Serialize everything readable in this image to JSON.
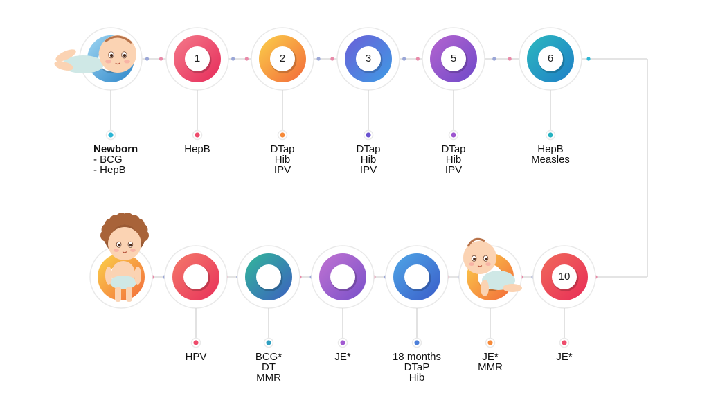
{
  "colors": {
    "line": "#d3d3d3",
    "ring": "#e9e9e9"
  },
  "top_row": [
    {
      "id": "newborn",
      "number": "",
      "gradient": [
        "#9fd6f2",
        "#2e86c9"
      ],
      "dot": "#2bb5d4",
      "baby": "lying",
      "label": [
        "Newborn",
        "- BCG",
        "- HepB"
      ]
    },
    {
      "id": "m1",
      "number": "1",
      "gradient": [
        "#f47a8a",
        "#e62b5a"
      ],
      "dot": "#ee4b6b",
      "label": [
        "HepB"
      ]
    },
    {
      "id": "m2",
      "number": "2",
      "gradient": [
        "#fbd04a",
        "#f2683a"
      ],
      "dot": "#f68a3a",
      "label": [
        "DTap",
        "Hib",
        "IPV"
      ]
    },
    {
      "id": "m3",
      "number": "3",
      "gradient": [
        "#6a5fd8",
        "#3e9be4"
      ],
      "dot": "#6a53d0",
      "label": [
        "DTap",
        "Hib",
        "IPV"
      ]
    },
    {
      "id": "m5",
      "number": "5",
      "gradient": [
        "#b564cf",
        "#6e49c9"
      ],
      "dot": "#9d55cf",
      "label": [
        "DTap",
        "Hib",
        "IPV"
      ]
    },
    {
      "id": "m6",
      "number": "6",
      "gradient": [
        "#2cb8bf",
        "#1f7fc7"
      ],
      "dot": "#26b2c0",
      "label": [
        "HepB",
        "Measles"
      ]
    }
  ],
  "bottom_row": [
    {
      "id": "m10",
      "number": "10",
      "gradient": [
        "#f06a5a",
        "#e82c58"
      ],
      "dot": "#ee4b6b",
      "label": [
        "JE*"
      ]
    },
    {
      "id": "m12",
      "number": "",
      "gradient": [
        "#fbd04a",
        "#f2683a"
      ],
      "dot": "#f68a3a",
      "baby": "crawling",
      "label": [
        "JE*",
        "MMR"
      ]
    },
    {
      "id": "m18",
      "number": "",
      "gradient": [
        "#4fa6e6",
        "#3a5cc9"
      ],
      "dot": "#4c7fd9",
      "label": [
        "18 months",
        "DTaP",
        "Hib"
      ]
    },
    {
      "id": "je",
      "number": "",
      "gradient": [
        "#c173d2",
        "#7850c9"
      ],
      "dot": "#a15ad1",
      "label": [
        "JE*"
      ]
    },
    {
      "id": "bcg",
      "number": "",
      "gradient": [
        "#32b89a",
        "#3c5fbf"
      ],
      "dot": "#2f9fc0",
      "label": [
        "BCG*",
        "DT",
        "MMR"
      ]
    },
    {
      "id": "hpv",
      "number": "",
      "gradient": [
        "#f47a6a",
        "#e8305a"
      ],
      "dot": "#ee4b6b",
      "label": [
        "HPV"
      ]
    },
    {
      "id": "end",
      "number": "",
      "gradient": [
        "#fbd24a",
        "#f26b3c"
      ],
      "dot": "#f68a3a",
      "baby": "standing",
      "label": []
    }
  ]
}
